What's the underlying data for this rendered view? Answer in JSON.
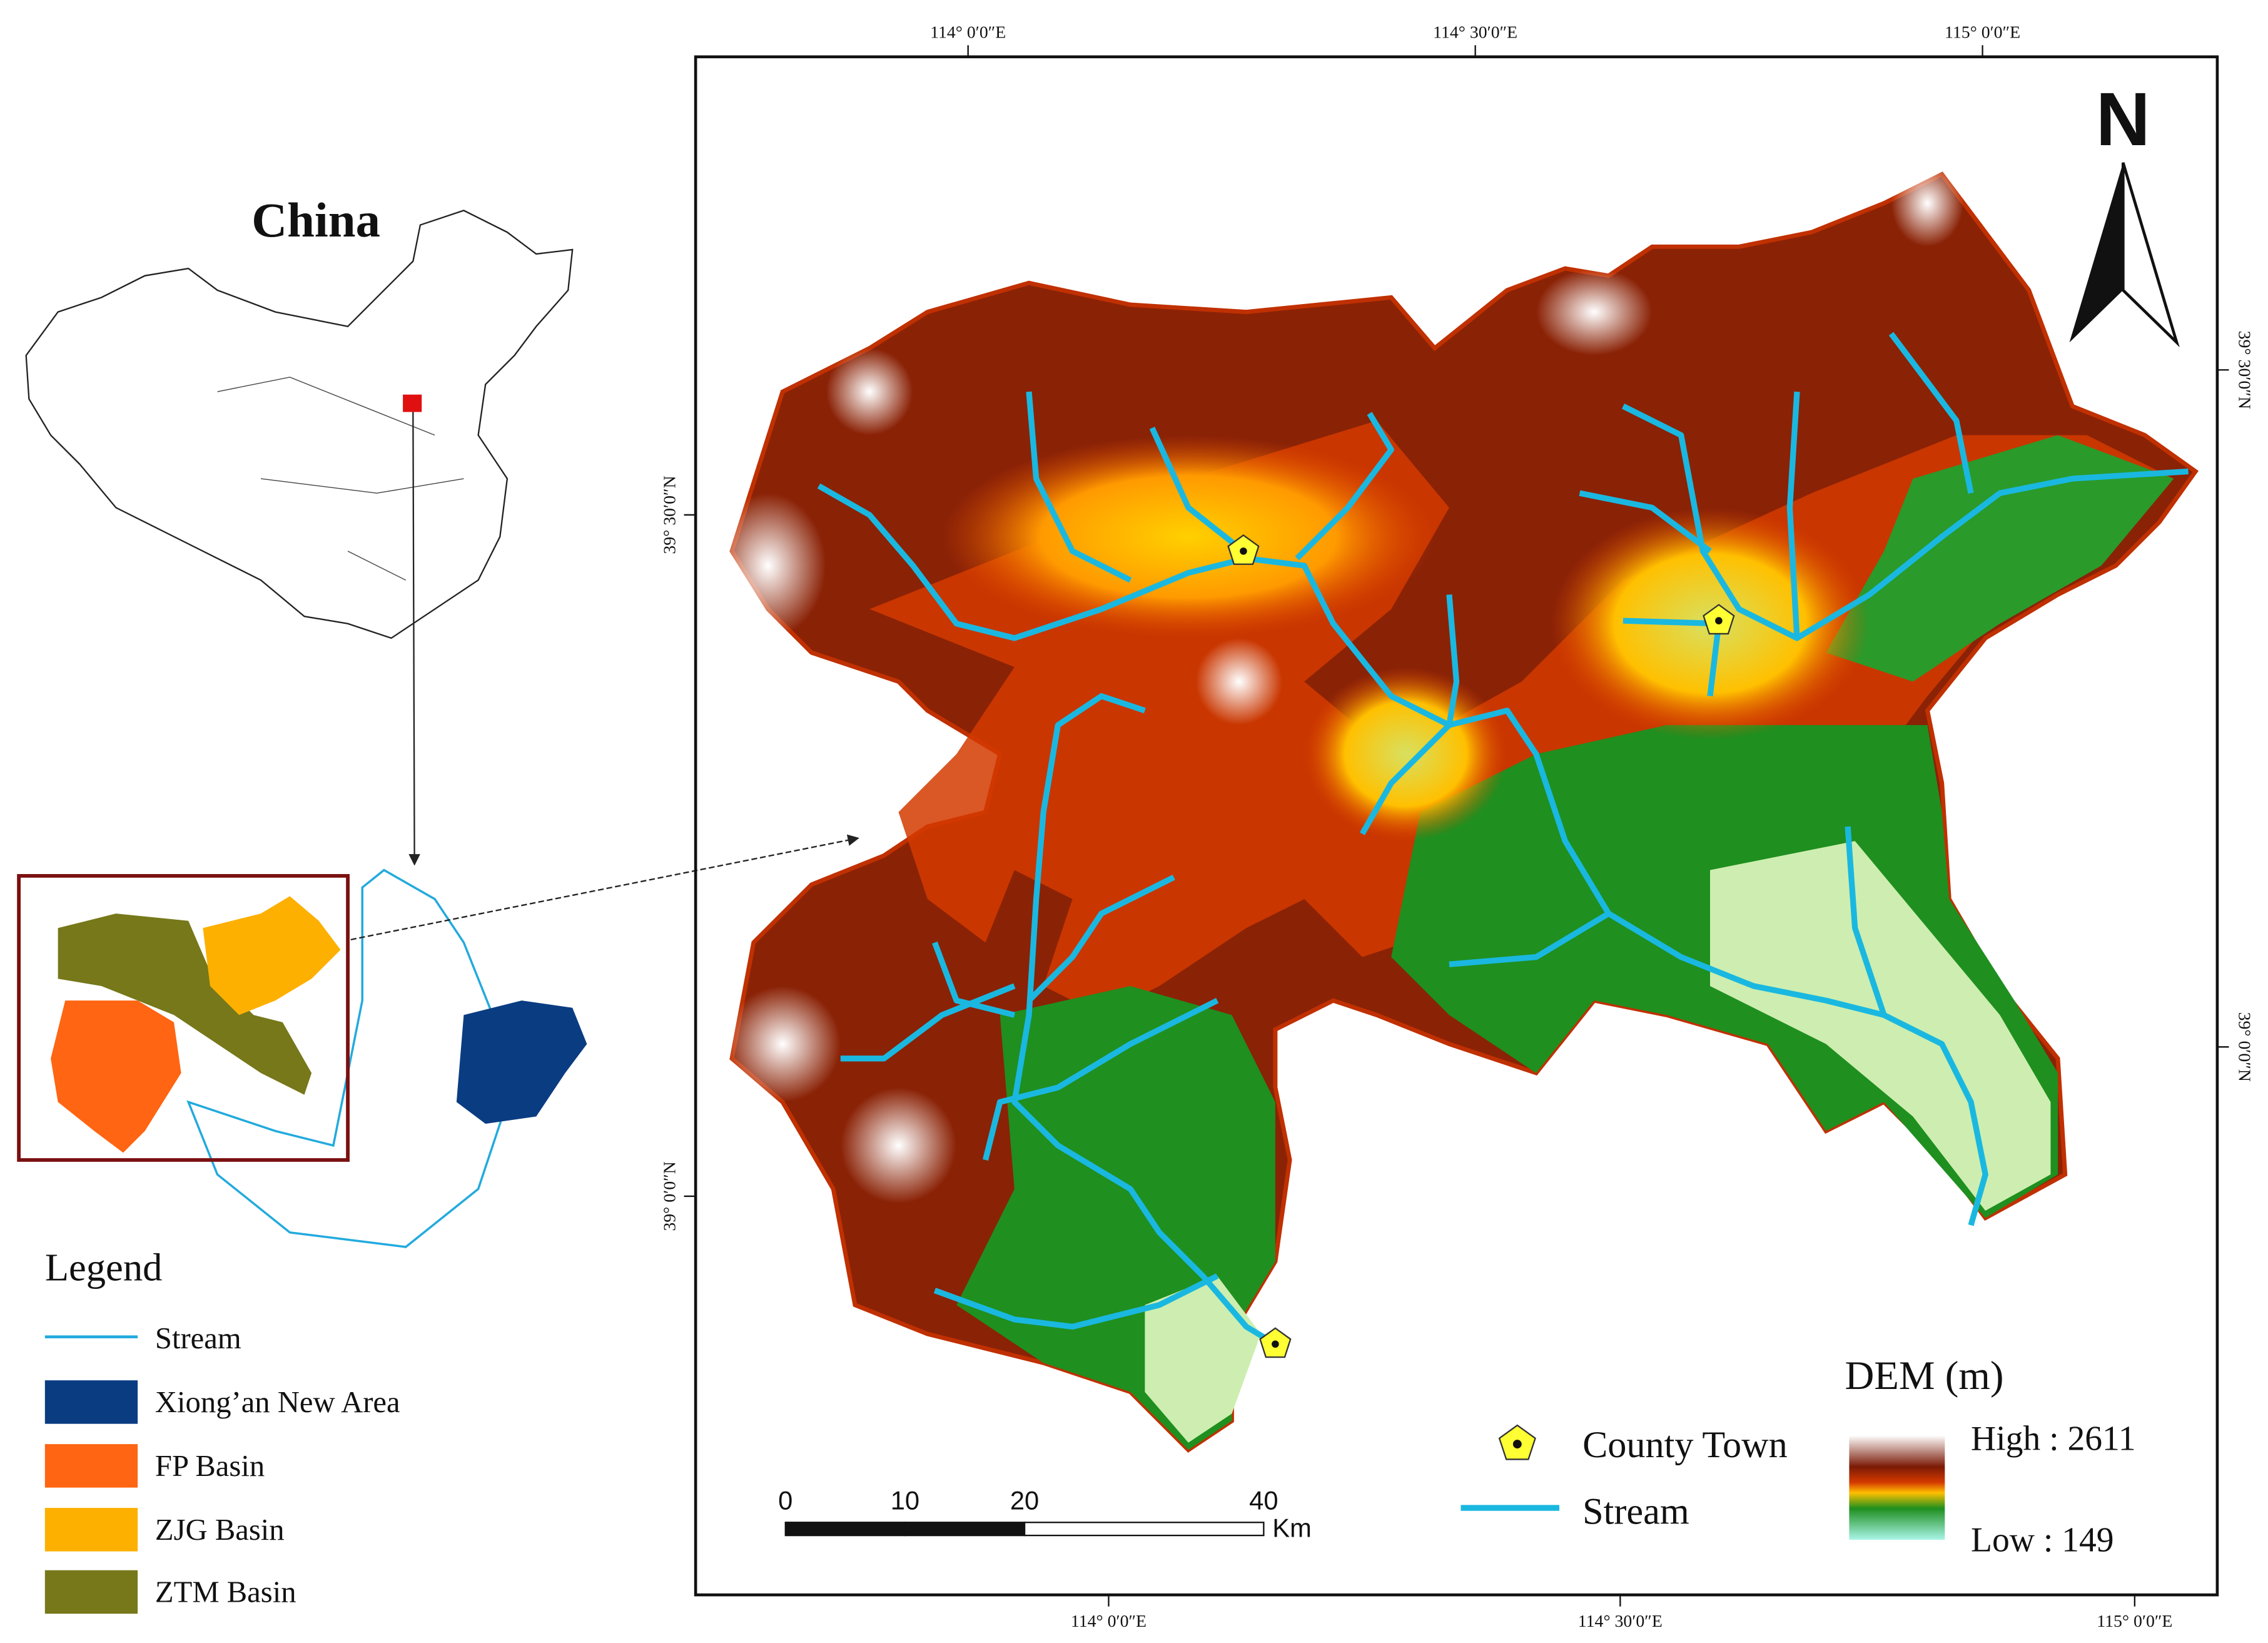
{
  "inset": {
    "title": "China",
    "legend_title": "Legend",
    "legend_items": [
      "Stream",
      "Xiong’an New Area",
      "FP Basin",
      "ZJG Basin",
      "ZTM Basin"
    ]
  },
  "map": {
    "top_labels": [
      "114° 0′0″E",
      "114° 30′0″E",
      "115° 0′0″E"
    ],
    "bottom_labels": [
      "114° 0′0″E",
      "114° 30′0″E",
      "115° 0′0″E"
    ],
    "left_labels": [
      "39° 30′0″N",
      "39° 0′0″N"
    ],
    "right_labels": [
      "39° 30′0″N",
      "39° 0′0″N"
    ],
    "north": "N",
    "scale_ticks": [
      0,
      10,
      20,
      40
    ],
    "scale_unit": "Km",
    "legend": {
      "county_town": "County Town",
      "stream": "Stream",
      "dem_title": "DEM (m)",
      "high": "High : 2611",
      "low": "Low : 149"
    }
  }
}
